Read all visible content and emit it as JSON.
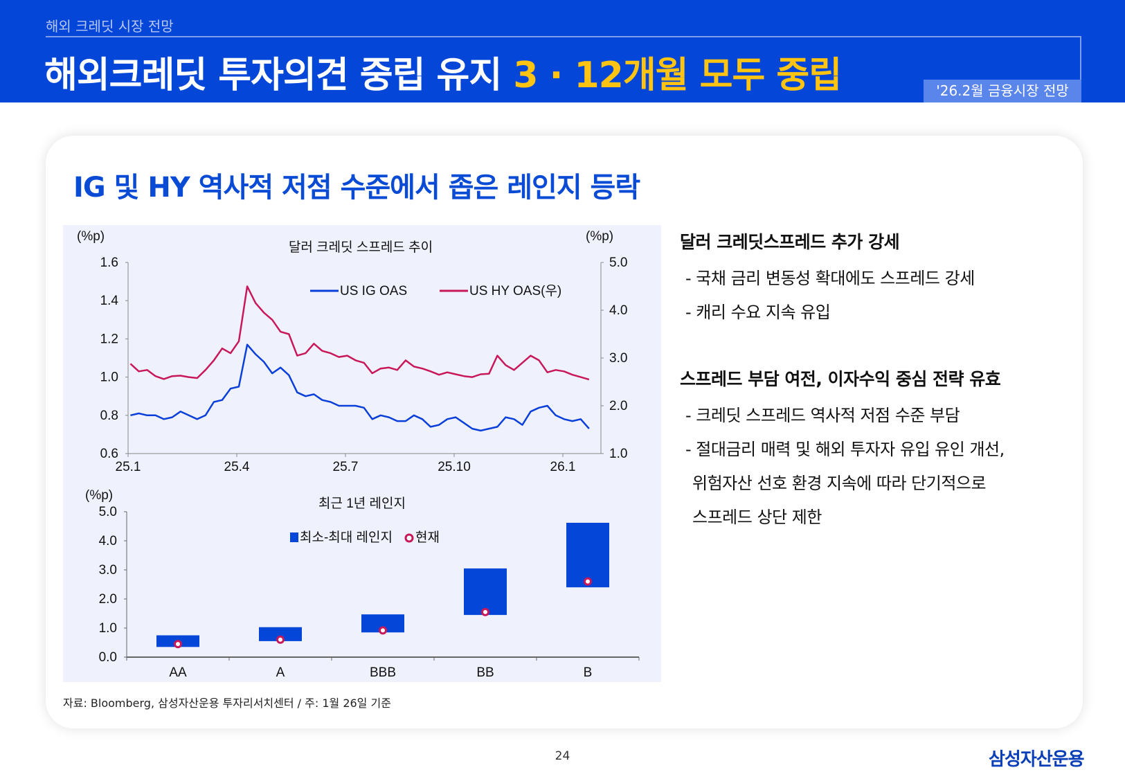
{
  "header": {
    "section": "해외 크레딧 시장 전망",
    "title_main": "해외크레딧 투자의견 중립 유지 ",
    "title_highlight": "3 · 12개월 모두 중립",
    "badge": "'26.2월 금융시장 전망",
    "colors": {
      "bar": "#0346d8",
      "highlight": "#ffc312"
    }
  },
  "card": {
    "subtitle": "IG 및 HY 역사적 저점 수준에서 좁은 레인지 등락"
  },
  "chart_data": [
    {
      "type": "line",
      "title": "달러 크레딧 스프레드 추이",
      "ylabel": "(%p)",
      "y2label": "(%p)",
      "ylim": [
        0.6,
        1.6
      ],
      "y2lim": [
        1.0,
        5.0
      ],
      "yticks": [
        "0.6",
        "0.8",
        "1.0",
        "1.2",
        "1.4",
        "1.6"
      ],
      "y2ticks": [
        "1.0",
        "2.0",
        "3.0",
        "4.0",
        "5.0"
      ],
      "xticks": [
        "25.1",
        "25.4",
        "25.7",
        "25.10",
        "26.1"
      ],
      "legend": "top-center",
      "grid": false,
      "x": [
        "2025-01-03",
        "2025-01-10",
        "2025-01-17",
        "2025-01-24",
        "2025-01-31",
        "2025-02-07",
        "2025-02-14",
        "2025-02-21",
        "2025-02-28",
        "2025-03-07",
        "2025-03-14",
        "2025-03-21",
        "2025-03-28",
        "2025-04-04",
        "2025-04-11",
        "2025-04-18",
        "2025-04-25",
        "2025-05-02",
        "2025-05-09",
        "2025-05-16",
        "2025-05-23",
        "2025-05-30",
        "2025-06-06",
        "2025-06-13",
        "2025-06-20",
        "2025-06-27",
        "2025-07-04",
        "2025-07-11",
        "2025-07-18",
        "2025-07-25",
        "2025-08-01",
        "2025-08-08",
        "2025-08-15",
        "2025-08-22",
        "2025-08-29",
        "2025-09-05",
        "2025-09-12",
        "2025-09-19",
        "2025-09-26",
        "2025-10-03",
        "2025-10-10",
        "2025-10-17",
        "2025-10-24",
        "2025-10-31",
        "2025-11-07",
        "2025-11-14",
        "2025-11-21",
        "2025-11-28",
        "2025-12-05",
        "2025-12-12",
        "2025-12-19",
        "2025-12-26",
        "2026-01-02",
        "2026-01-09",
        "2026-01-16",
        "2026-01-23"
      ],
      "series": [
        {
          "name": "US IG OAS",
          "axis": "left",
          "color": "#0a3fd9",
          "values": [
            0.8,
            0.81,
            0.8,
            0.8,
            0.78,
            0.79,
            0.82,
            0.8,
            0.78,
            0.8,
            0.87,
            0.88,
            0.94,
            0.95,
            1.17,
            1.12,
            1.08,
            1.02,
            1.05,
            1.01,
            0.92,
            0.9,
            0.91,
            0.88,
            0.87,
            0.85,
            0.85,
            0.85,
            0.84,
            0.78,
            0.8,
            0.79,
            0.77,
            0.77,
            0.8,
            0.78,
            0.74,
            0.75,
            0.78,
            0.79,
            0.76,
            0.73,
            0.72,
            0.73,
            0.74,
            0.79,
            0.78,
            0.75,
            0.82,
            0.84,
            0.85,
            0.8,
            0.78,
            0.77,
            0.78,
            0.73
          ]
        },
        {
          "name": "US HY OAS(우)",
          "axis": "right",
          "color": "#c8185a",
          "values": [
            2.88,
            2.72,
            2.75,
            2.62,
            2.56,
            2.62,
            2.63,
            2.6,
            2.58,
            2.75,
            2.95,
            3.2,
            3.1,
            3.35,
            4.5,
            4.15,
            3.95,
            3.8,
            3.55,
            3.5,
            3.05,
            3.1,
            3.3,
            3.15,
            3.1,
            3.02,
            3.05,
            2.95,
            2.9,
            2.68,
            2.78,
            2.8,
            2.75,
            2.95,
            2.82,
            2.78,
            2.72,
            2.65,
            2.7,
            2.66,
            2.62,
            2.6,
            2.66,
            2.67,
            3.05,
            2.85,
            2.75,
            2.9,
            3.05,
            2.95,
            2.7,
            2.75,
            2.72,
            2.65,
            2.6,
            2.55
          ]
        }
      ]
    },
    {
      "type": "bar",
      "title": "최근 1년 레인지",
      "ylabel": "(%p)",
      "ylim": [
        0,
        5.0
      ],
      "yticks": [
        "0.0",
        "1.0",
        "2.0",
        "3.0",
        "4.0",
        "5.0"
      ],
      "categories": [
        "AA",
        "A",
        "BBB",
        "BB",
        "B"
      ],
      "legend": "top-center",
      "series": [
        {
          "name": "최소-최대 레인지",
          "color": "#0346d8",
          "min": [
            0.35,
            0.55,
            0.85,
            1.45,
            2.4
          ],
          "max": [
            0.75,
            1.03,
            1.47,
            3.05,
            4.62
          ]
        },
        {
          "name": "현재",
          "color": "#c8185a",
          "values": [
            0.45,
            0.6,
            0.92,
            1.55,
            2.6
          ]
        }
      ]
    }
  ],
  "footnote": "자료: Bloomberg, 삼성자산운용 투자리서치센터 / 주: 1월 26일 기준",
  "commentary": [
    {
      "heading": "달러 크레딧스프레드 추가 강세",
      "bullets": [
        "- 국채 금리 변동성 확대에도 스프레드 강세",
        "- 캐리 수요 지속 유입"
      ]
    },
    {
      "heading": "스프레드 부담 여전, 이자수익 중심 전략 유효",
      "bullets": [
        "- 크레딧 스프레드 역사적 저점 수준 부담",
        "- 절대금리 매력 및 해외 투자자 유입 유인 개선,",
        "위험자산 선호 환경 지속에 따라 단기적으로",
        "스프레드 상단 제한"
      ]
    }
  ],
  "footer": {
    "page": "24",
    "logo": "삼성자산운용"
  }
}
